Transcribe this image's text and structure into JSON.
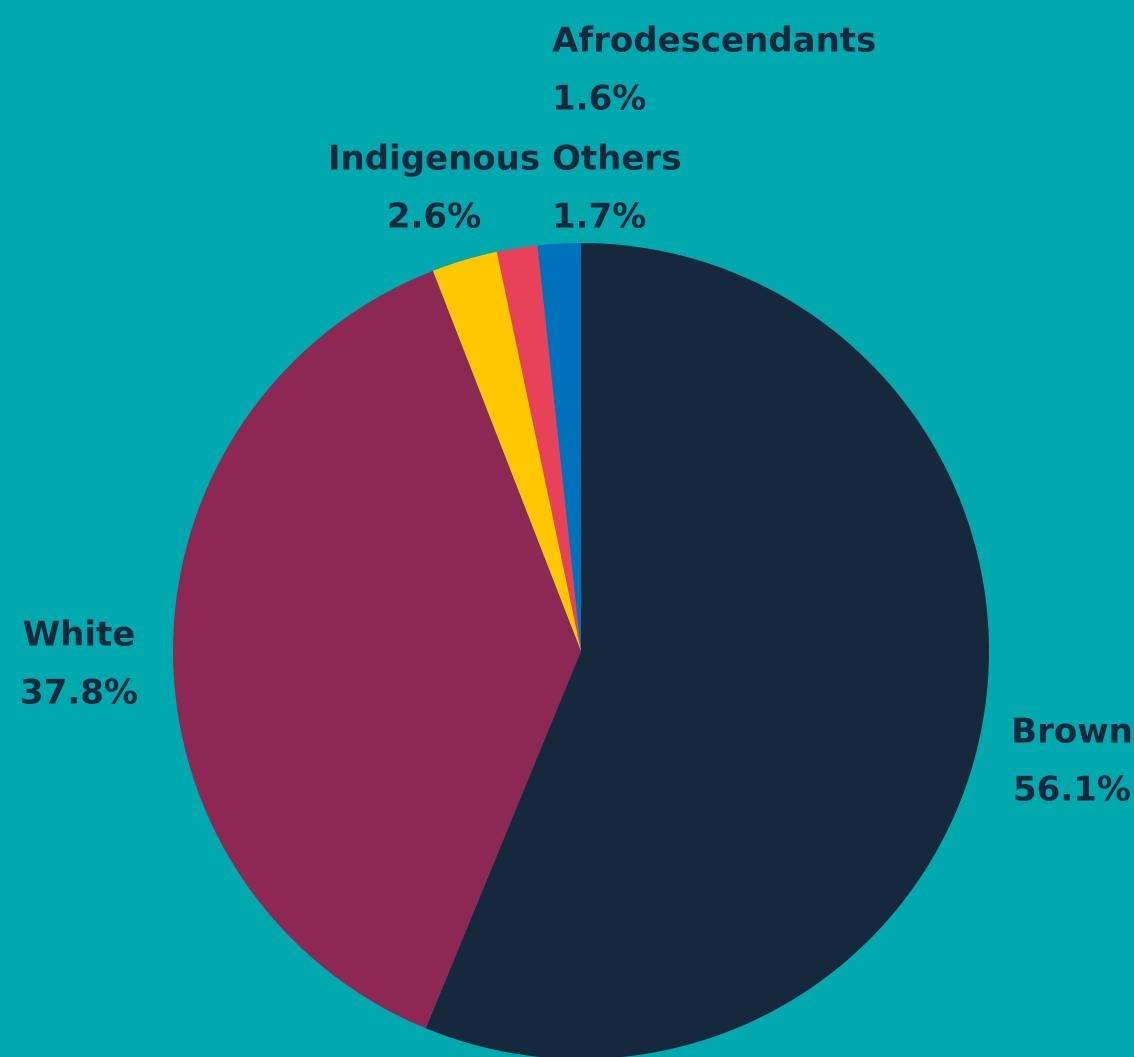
{
  "colors": {
    "background": "#00A9AE",
    "label_text": "#15283C"
  },
  "chart_data": {
    "type": "pie",
    "title": "",
    "start": "12 o'clock",
    "direction": "clockwise",
    "legend": "none",
    "slices": [
      {
        "label": "Brown",
        "value": 56.1,
        "value_label": "56.1%",
        "color": "#15283C"
      },
      {
        "label": "White",
        "value": 37.8,
        "value_label": "37.8%",
        "color": "#8D2854"
      },
      {
        "label": "Indigenous",
        "value": 2.6,
        "value_label": "2.6%",
        "color": "#FFC700"
      },
      {
        "label": "Afrodescendants",
        "value": 1.6,
        "value_label": "1.6%",
        "color": "#E8425A"
      },
      {
        "label": "Others",
        "value": 1.7,
        "value_label": "1.7%",
        "color": "#0072BC"
      }
    ]
  }
}
